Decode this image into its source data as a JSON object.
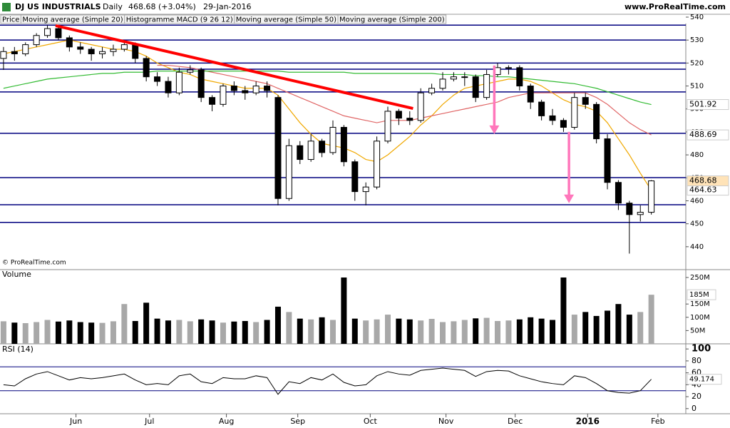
{
  "chart_data": [
    {
      "type": "candlestick",
      "title": "DJ US INDUSTRIALS",
      "period": "Daily",
      "subtitle": "468.68 (+3.04%)",
      "date": "29-Jan-2016",
      "source": "www.ProRealTime.com",
      "watermark": "© ProRealTime.com",
      "tabs": [
        "Price",
        "Histogramme MACD (9 26 12)"
      ],
      "xlim": [
        -0.32,
        62.14
      ],
      "ylim": [
        432.5,
        537.2
      ],
      "yticks": [
        440,
        450,
        460,
        470,
        480,
        490,
        500,
        510,
        520,
        530,
        540
      ],
      "up_color": "#ffffff",
      "down_color": "#000000",
      "candles": [
        {
          "open": 522,
          "high": 527,
          "low": 517,
          "close": 525
        },
        {
          "open": 525,
          "high": 527,
          "low": 521,
          "close": 524
        },
        {
          "open": 524,
          "high": 529,
          "low": 523,
          "close": 528
        },
        {
          "open": 528,
          "high": 533,
          "low": 527,
          "close": 532
        },
        {
          "open": 532,
          "high": 536.5,
          "low": 531,
          "close": 535
        },
        {
          "open": 535,
          "high": 536,
          "low": 530,
          "close": 531
        },
        {
          "open": 531,
          "high": 532,
          "low": 525,
          "close": 527
        },
        {
          "open": 527,
          "high": 529,
          "low": 524,
          "close": 526
        },
        {
          "open": 526,
          "high": 527,
          "low": 521,
          "close": 524
        },
        {
          "open": 524,
          "high": 527,
          "low": 522,
          "close": 525
        },
        {
          "open": 525,
          "high": 528,
          "low": 523,
          "close": 526
        },
        {
          "open": 526,
          "high": 530,
          "low": 525,
          "close": 528
        },
        {
          "open": 528,
          "high": 529,
          "low": 520,
          "close": 522
        },
        {
          "open": 522,
          "high": 523,
          "low": 512,
          "close": 514
        },
        {
          "open": 514,
          "high": 516,
          "low": 510,
          "close": 512
        },
        {
          "open": 512,
          "high": 514,
          "low": 505,
          "close": 507
        },
        {
          "open": 507,
          "high": 518,
          "low": 506,
          "close": 516
        },
        {
          "open": 516,
          "high": 519,
          "low": 515,
          "close": 517
        },
        {
          "open": 517,
          "high": 518,
          "low": 503,
          "close": 505
        },
        {
          "open": 505,
          "high": 506,
          "low": 499,
          "close": 502
        },
        {
          "open": 502,
          "high": 511,
          "low": 501,
          "close": 510
        },
        {
          "open": 510,
          "high": 512,
          "low": 506,
          "close": 508
        },
        {
          "open": 508,
          "high": 510,
          "low": 504,
          "close": 507
        },
        {
          "open": 507,
          "high": 512,
          "low": 506,
          "close": 510
        },
        {
          "open": 510,
          "high": 512,
          "low": 505,
          "close": 508
        },
        {
          "open": 505,
          "high": 506,
          "low": 458,
          "close": 461
        },
        {
          "open": 461,
          "high": 487,
          "low": 460,
          "close": 484
        },
        {
          "open": 484,
          "high": 486,
          "low": 476,
          "close": 478
        },
        {
          "open": 478,
          "high": 489,
          "low": 477,
          "close": 486
        },
        {
          "open": 486,
          "high": 487,
          "low": 479,
          "close": 481
        },
        {
          "open": 481,
          "high": 495,
          "low": 480,
          "close": 492
        },
        {
          "open": 492,
          "high": 493,
          "low": 475,
          "close": 477
        },
        {
          "open": 477,
          "high": 478,
          "low": 460,
          "close": 464
        },
        {
          "open": 464,
          "high": 468,
          "low": 458,
          "close": 466
        },
        {
          "open": 466,
          "high": 488,
          "low": 465,
          "close": 486
        },
        {
          "open": 486,
          "high": 501,
          "low": 485,
          "close": 499
        },
        {
          "open": 499,
          "high": 500,
          "low": 493,
          "close": 496
        },
        {
          "open": 496,
          "high": 499,
          "low": 493,
          "close": 495
        },
        {
          "open": 495,
          "high": 509,
          "low": 494,
          "close": 507
        },
        {
          "open": 507,
          "high": 511,
          "low": 506,
          "close": 509
        },
        {
          "open": 509,
          "high": 516,
          "low": 508,
          "close": 513
        },
        {
          "open": 513,
          "high": 516,
          "low": 512,
          "close": 514
        },
        {
          "open": 514,
          "high": 516,
          "low": 510,
          "close": 514
        },
        {
          "open": 514,
          "high": 515,
          "low": 503,
          "close": 505
        },
        {
          "open": 505,
          "high": 517,
          "low": 504,
          "close": 515
        },
        {
          "open": 515,
          "high": 520,
          "low": 514,
          "close": 518
        },
        {
          "open": 518,
          "high": 519,
          "low": 515,
          "close": 518
        },
        {
          "open": 518,
          "high": 519,
          "low": 508,
          "close": 510
        },
        {
          "open": 510,
          "high": 511,
          "low": 500,
          "close": 503
        },
        {
          "open": 503,
          "high": 504,
          "low": 495,
          "close": 497
        },
        {
          "open": 497,
          "high": 500,
          "low": 493,
          "close": 495
        },
        {
          "open": 495,
          "high": 496,
          "low": 490,
          "close": 492
        },
        {
          "open": 492,
          "high": 507,
          "low": 491,
          "close": 505
        },
        {
          "open": 505,
          "high": 507,
          "low": 500,
          "close": 502
        },
        {
          "open": 502,
          "high": 503,
          "low": 485,
          "close": 487
        },
        {
          "open": 487,
          "high": 489,
          "low": 465,
          "close": 468
        },
        {
          "open": 468,
          "high": 469,
          "low": 456,
          "close": 459
        },
        {
          "open": 459,
          "high": 460,
          "low": 437,
          "close": 454
        },
        {
          "open": 454,
          "high": 458,
          "low": 451,
          "close": 455
        },
        {
          "open": 455,
          "high": 469,
          "low": 454,
          "close": 468.68
        }
      ],
      "series": [
        {
          "name": "Moving average (Simple 20)",
          "color": "#f0a800",
          "values": [
            524,
            525,
            526,
            527,
            528,
            529,
            530,
            529,
            528,
            527,
            526,
            526,
            525,
            523,
            520,
            518,
            516,
            515,
            513,
            512,
            511,
            510,
            509,
            509,
            509,
            506,
            500,
            494,
            489,
            485,
            484,
            483,
            481,
            478,
            477,
            480,
            484,
            488,
            493,
            497,
            502,
            506,
            509,
            510,
            511,
            512,
            513,
            513,
            512,
            510,
            507,
            504,
            502,
            501,
            499,
            494,
            487,
            480,
            472,
            464.63
          ]
        },
        {
          "name": "Moving average (Simple 50)",
          "color": "#e06666",
          "values": [
            null,
            null,
            null,
            null,
            null,
            null,
            null,
            null,
            null,
            null,
            null,
            null,
            null,
            null,
            519,
            519,
            518.5,
            518,
            517,
            516,
            515,
            514,
            513,
            512,
            511,
            509,
            507,
            505,
            503,
            501,
            499,
            497,
            496,
            495,
            494,
            495,
            495,
            495,
            496,
            497,
            498,
            499,
            500,
            501,
            502,
            503,
            505,
            506,
            507,
            507,
            507,
            507,
            507,
            507,
            505,
            502,
            498,
            494,
            491,
            488.69
          ]
        },
        {
          "name": "Moving average (Simple 200)",
          "color": "#33bb33",
          "values": [
            509,
            510,
            511,
            512,
            513,
            513.5,
            514,
            514.5,
            515,
            515.5,
            515.5,
            516,
            516,
            516,
            516.5,
            516.5,
            516.5,
            516.5,
            516.5,
            516.5,
            516.5,
            516.5,
            516.5,
            516.5,
            516.5,
            516.5,
            516,
            516,
            516,
            516,
            516,
            516,
            515.5,
            515.5,
            515.5,
            515.5,
            515.5,
            515.5,
            515.5,
            515.5,
            515,
            515,
            515,
            514.5,
            514.5,
            514,
            514,
            513.5,
            513,
            512.5,
            512,
            511.5,
            511,
            510,
            509,
            507.5,
            506,
            504.5,
            503,
            501.92
          ]
        }
      ],
      "levels": [
        536.5,
        530,
        520,
        517.3,
        507.4,
        489.4,
        470.1,
        458.3,
        450.6
      ],
      "level_color": "#00007f",
      "trendline": {
        "x": [
          4.74,
          37.3
        ],
        "y": [
          536.3,
          500.2
        ],
        "color": "#ff0000"
      },
      "arrows": {
        "color": "#ff77bb",
        "items": [
          {
            "x": 44.7,
            "from": 518.9,
            "to": 489.1
          },
          {
            "x": 51.5,
            "from": 490,
            "to": 459
          }
        ]
      }
    },
    {
      "type": "bar",
      "title": "Volume",
      "xlim": [
        -0.32,
        62.14
      ],
      "ylim": [
        0,
        279.6
      ],
      "yticks": [
        {
          "value": 50,
          "label": "50M"
        },
        {
          "value": 100,
          "label": "100M"
        },
        {
          "value": 150,
          "label": "150M"
        },
        {
          "value": 250,
          "label": "250M"
        }
      ],
      "values": [
        85,
        80,
        78,
        82,
        90,
        84,
        88,
        82,
        80,
        79,
        85,
        150,
        86,
        155,
        95,
        88,
        90,
        85,
        92,
        88,
        80,
        84,
        86,
        82,
        90,
        140,
        120,
        95,
        92,
        100,
        90,
        250,
        95,
        88,
        92,
        110,
        95,
        92,
        88,
        94,
        82,
        85,
        90,
        96,
        98,
        86,
        88,
        92,
        100,
        95,
        90,
        250,
        110,
        120,
        105,
        125,
        150,
        110,
        120,
        185
      ],
      "value_labels_last": "185M",
      "up_color": "#a8a8a8",
      "down_color": "#000000"
    },
    {
      "type": "line",
      "title": "RSI (14)",
      "xlim": [
        -0.32,
        62.14
      ],
      "ylim": [
        -8.6,
        108.6
      ],
      "yticks": [
        0,
        20,
        40,
        60,
        80,
        100
      ],
      "bands": [
        30,
        70
      ],
      "band_color": "#00007f",
      "color": "#000000",
      "values": [
        40,
        38,
        50,
        58,
        62,
        55,
        48,
        52,
        50,
        52,
        55,
        58,
        48,
        40,
        42,
        40,
        55,
        58,
        45,
        42,
        52,
        50,
        50,
        55,
        52,
        24,
        45,
        42,
        52,
        48,
        58,
        44,
        38,
        40,
        55,
        62,
        58,
        56,
        64,
        66,
        68,
        66,
        64,
        54,
        62,
        64,
        63,
        55,
        50,
        45,
        42,
        40,
        55,
        52,
        42,
        30,
        27,
        26,
        30,
        49.174
      ],
      "xticks": [
        {
          "value": 6.6,
          "label": "Jun"
        },
        {
          "value": 13.3,
          "label": "Jul"
        },
        {
          "value": 20.3,
          "label": "Aug"
        },
        {
          "value": 26.8,
          "label": "Sep"
        },
        {
          "value": 33.4,
          "label": "Oct"
        },
        {
          "value": 40.3,
          "label": "Nov"
        },
        {
          "value": 46.6,
          "label": "Dec"
        },
        {
          "value": 53.2,
          "label": "2016"
        },
        {
          "value": 59.6,
          "label": "Feb"
        }
      ]
    }
  ]
}
